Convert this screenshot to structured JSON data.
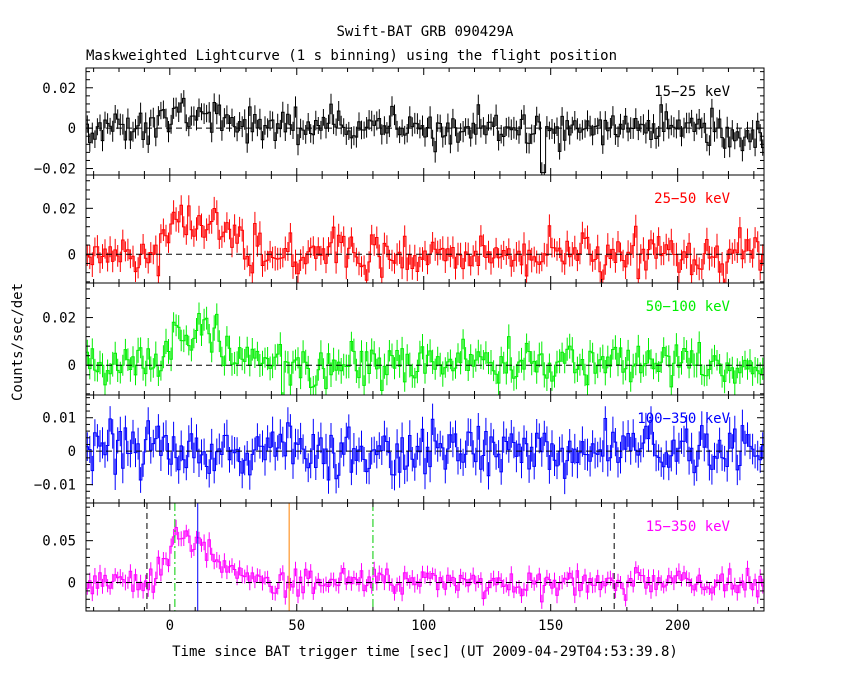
{
  "title": "Swift-BAT GRB 090429A",
  "subtitle": "Maskweighted Lightcurve (1 s binning) using the flight position",
  "chart_data": {
    "type": "line",
    "title": "Swift-BAT GRB 090429A",
    "subtitle": "Maskweighted Lightcurve (1 s binning) using the flight position",
    "xlabel": "Time since BAT trigger time [sec] (UT 2009-04-29T04:53:39.8)",
    "ylabel": "Counts/sec/det",
    "xlim": [
      -33,
      234
    ],
    "xticks": [
      0,
      50,
      100,
      150,
      200
    ],
    "xtick_labels": [
      "0",
      "50",
      "100",
      "150",
      "200"
    ],
    "panels": [
      {
        "band": "15-25 keV",
        "label": "15−25 keV",
        "color": "#000000",
        "ylim": [
          -0.0232,
          0.0298
        ],
        "yticks": [
          -0.02,
          0,
          0.02
        ],
        "ytick_labels": [
          "−0.02",
          "0",
          "0.02"
        ],
        "noise": 0.0045,
        "pulse_peak": 0.012,
        "tail": 0.004,
        "dips": [
          [
            147,
            -0.022
          ]
        ]
      },
      {
        "band": "25-50 keV",
        "label": "25−50 keV",
        "color": "#ff0000",
        "ylim": [
          -0.0125,
          0.0345
        ],
        "yticks": [
          0,
          0.02
        ],
        "ytick_labels": [
          "0",
          "0.02"
        ],
        "noise": 0.0045,
        "pulse_peak": 0.022,
        "tail": 0.01,
        "dips": []
      },
      {
        "band": "50-100 keV",
        "label": "50−100 keV",
        "color": "#00ee00",
        "ylim": [
          -0.0125,
          0.0345
        ],
        "yticks": [
          0,
          0.02
        ],
        "ytick_labels": [
          "0",
          "0.02"
        ],
        "noise": 0.0045,
        "pulse_peak": 0.02,
        "tail": 0.008,
        "dips": []
      },
      {
        "band": "100-350 keV",
        "label": "100−350 keV",
        "color": "#0000ff",
        "ylim": [
          -0.0155,
          0.0168
        ],
        "yticks": [
          -0.01,
          0,
          0.01
        ],
        "ytick_labels": [
          "−0.01",
          "0",
          "0.01"
        ],
        "noise": 0.004,
        "pulse_peak": 0.0,
        "tail": 0.0,
        "dips": []
      },
      {
        "band": "15-350 keV",
        "label": "15−350 keV",
        "color": "#ff00ff",
        "ylim": [
          -0.034,
          0.095
        ],
        "yticks": [
          0,
          0.05
        ],
        "ytick_labels": [
          "0",
          "0.05"
        ],
        "noise": 0.008,
        "pulse_peak": 0.065,
        "tail": 0.05,
        "dips": [],
        "markers": [
          {
            "x": -9,
            "color": "#000000",
            "style": "dashed",
            "name": "t-start-marker"
          },
          {
            "x": 175,
            "color": "#000000",
            "style": "dashed",
            "name": "t-end-marker"
          },
          {
            "x": 2,
            "color": "#00cc00",
            "style": "dashdot",
            "name": "t90-start-marker"
          },
          {
            "x": 80,
            "color": "#00cc00",
            "style": "dashdot",
            "name": "t90-end-marker"
          },
          {
            "x": 47,
            "color": "#ff8000",
            "style": "solid",
            "name": "t50-marker"
          },
          {
            "x": 11,
            "color": "#0000ff",
            "style": "solid",
            "name": "peak-marker"
          }
        ]
      }
    ],
    "grid": false,
    "legend": "none"
  }
}
